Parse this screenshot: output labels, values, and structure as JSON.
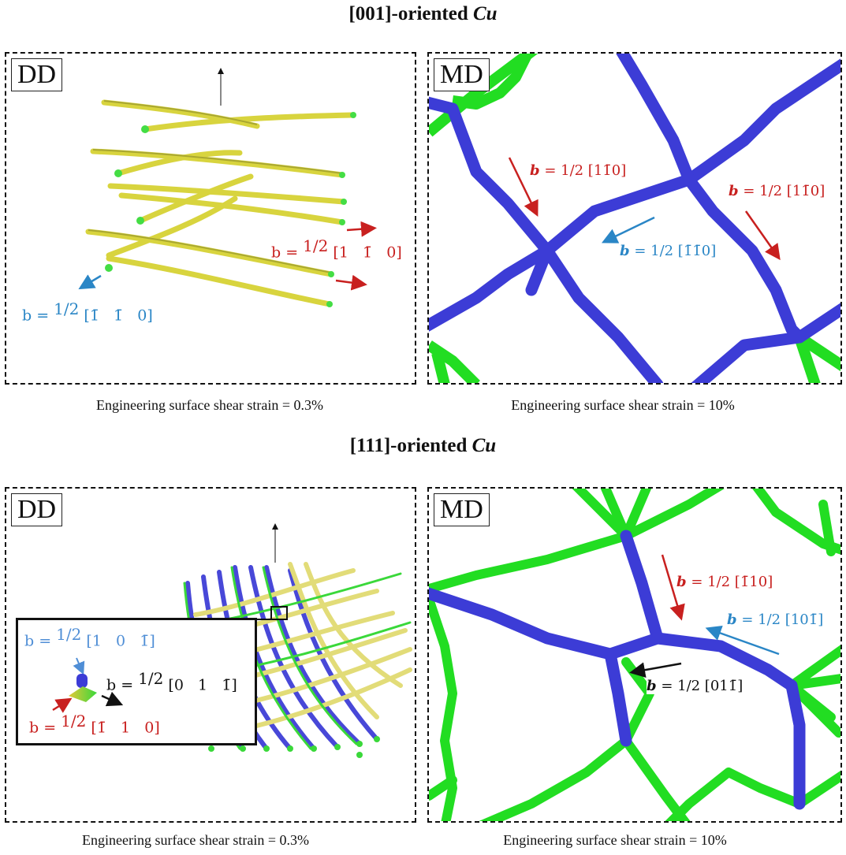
{
  "rows": [
    {
      "title_prefix": "[001]-oriented ",
      "title_material": "Cu",
      "dd": {
        "tag": "DD",
        "caption": "Engineering surface shear strain = 0.3%",
        "labels": [
          {
            "b": "b = ",
            "frac": "1/2",
            "vec": "[1   1̄   0]",
            "color": "red"
          },
          {
            "b": "b = ",
            "frac": "1/2",
            "vec": "[1̄   1̄   0]",
            "color": "blue"
          }
        ]
      },
      "md": {
        "tag": "MD",
        "caption": "Engineering surface shear strain = 10%",
        "labels": [
          {
            "b": "b",
            "rest": " = 1/2 [11̄0]",
            "color": "red"
          },
          {
            "b": "b",
            "rest": " = 1/2 [11̄0]",
            "color": "red"
          },
          {
            "b": "b",
            "rest": " = 1/2 [1̄1̄0]",
            "color": "blue"
          }
        ]
      }
    },
    {
      "title_prefix": "[111]-oriented ",
      "title_material": "Cu",
      "dd": {
        "tag": "DD",
        "caption": "Engineering surface shear strain = 0.3%",
        "labels": [
          {
            "b": "b = ",
            "frac": "1/2",
            "vec": "[1   0   1̄]",
            "color": "lightblue"
          },
          {
            "b": "b = ",
            "frac": "1/2",
            "vec": "[0   1   1̄]",
            "color": "black"
          },
          {
            "b": "b = ",
            "frac": "1/2",
            "vec": "[1̄   1   0]",
            "color": "red"
          }
        ]
      },
      "md": {
        "tag": "MD",
        "caption": "Engineering surface shear strain = 10%",
        "labels": [
          {
            "b": "b",
            "rest": " = 1/2 [1̄10]",
            "color": "red"
          },
          {
            "b": "b",
            "rest": " = 1/2 [101̄]",
            "color": "blue"
          },
          {
            "b": "b",
            "rest": " = 1/2 [011̄]",
            "color": "black"
          }
        ]
      }
    }
  ],
  "colors": {
    "blue_line": "#3c3cd6",
    "green_line": "#22dd22",
    "yellow_line": "#e6e24a",
    "red": "#c8201f",
    "blue": "#2a86c6"
  }
}
